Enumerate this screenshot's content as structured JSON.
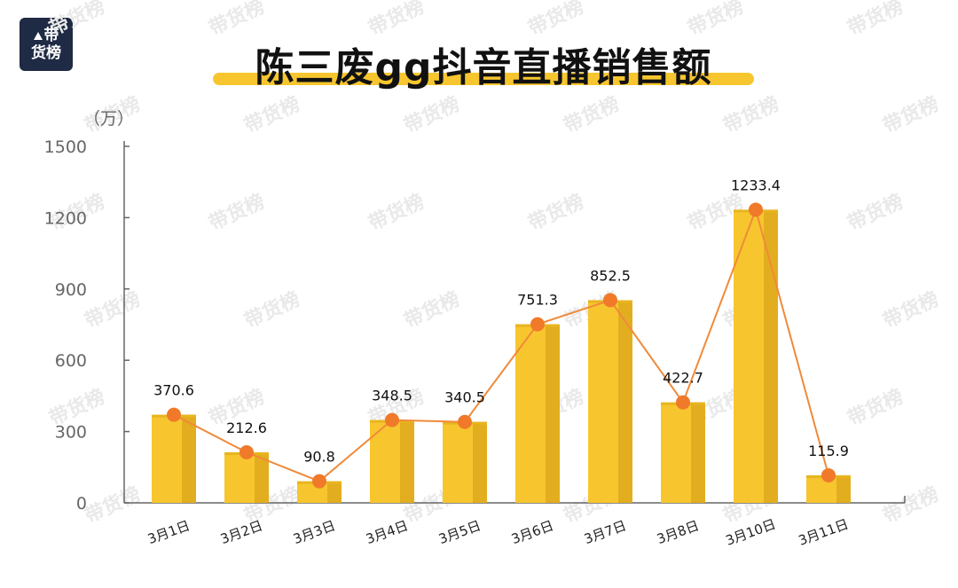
{
  "brand": {
    "logo_line1": "带",
    "logo_line2": "货榜",
    "watermark": "带货榜"
  },
  "chart_data": {
    "type": "bar",
    "title": "陈三废gg抖音直播销售额",
    "unit": "（万）",
    "categories": [
      "3月1日",
      "3月2日",
      "3月3日",
      "3月4日",
      "3月5日",
      "3月6日",
      "3月7日",
      "3月8日",
      "3月10日",
      "3月11日"
    ],
    "values": [
      370.6,
      212.6,
      90.8,
      348.5,
      340.5,
      751.3,
      852.5,
      422.7,
      1233.4,
      115.9
    ],
    "overlay": "line",
    "ylim": [
      0,
      1500
    ],
    "yticks": [
      0,
      300,
      600,
      900,
      1200,
      1500
    ],
    "grid": false,
    "colors": {
      "bar": "#f7c62f",
      "bar_shade": "#e2ae1f",
      "line": "#f08a3a",
      "marker": "#f07a2a"
    }
  }
}
